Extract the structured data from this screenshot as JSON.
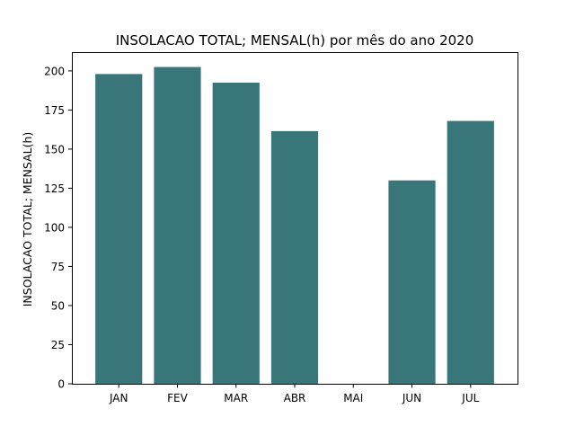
{
  "chart_data": {
    "type": "bar",
    "title": "INSOLACAO TOTAL; MENSAL(h) por mês do ano 2020",
    "xlabel": "",
    "ylabel": "INSOLACAO TOTAL; MENSAL(h)",
    "categories": [
      "JAN",
      "FEV",
      "MAR",
      "ABR",
      "MAI",
      "JUN",
      "JUL"
    ],
    "values": [
      198,
      202.5,
      192.5,
      161.5,
      null,
      130,
      168
    ],
    "ylim": [
      0,
      212
    ],
    "yticks": [
      0,
      25,
      50,
      75,
      100,
      125,
      150,
      175,
      200
    ],
    "bar_color": "#38767a",
    "grid": false,
    "legend": "none"
  }
}
